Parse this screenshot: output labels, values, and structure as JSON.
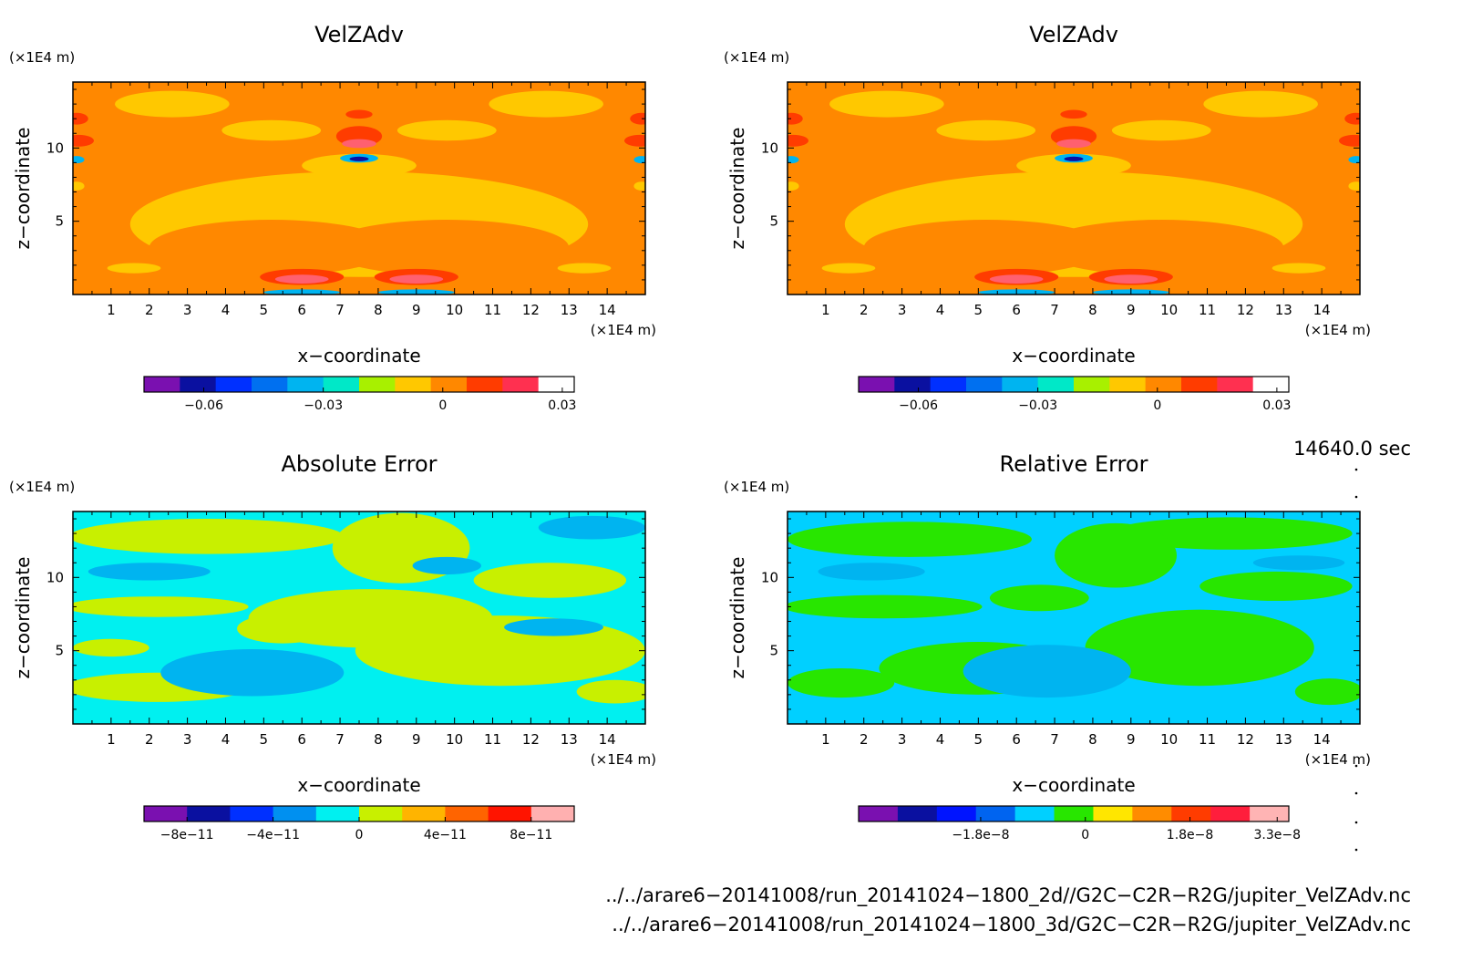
{
  "chart_data": [
    {
      "type": "heatmap",
      "title": "VelZAdv",
      "xlabel": "x−coordinate",
      "ylabel": "z−coordinate",
      "x_unit": "(×1E4 m)",
      "y_unit": "(×1E4 m)",
      "x_ticks": [
        "1",
        "2",
        "3",
        "4",
        "5",
        "6",
        "7",
        "8",
        "9",
        "10",
        "11",
        "12",
        "13",
        "14"
      ],
      "y_ticks": [
        "5",
        "10"
      ],
      "xlim": [
        0,
        15
      ],
      "ylim": [
        0,
        14.5
      ],
      "colorbar": {
        "colors": [
          "#7a10b0",
          "#0a10a0",
          "#0030ff",
          "#0070f0",
          "#00b4f0",
          "#00e8c8",
          "#a8f000",
          "#ffc800",
          "#ff8800",
          "#ff3c00",
          "#ff3050",
          "#ffffff"
        ],
        "tick_labels": [
          "−0.06",
          "−0.03",
          "0",
          "0.03"
        ],
        "tick_values": [
          -0.06,
          -0.03,
          0,
          0.03
        ],
        "range": [
          -0.075,
          0.033
        ]
      },
      "fields": {
        "background": "#ff8800",
        "regions": [
          {
            "value": "yellow",
            "cx": 2.6,
            "cy": 13.0,
            "rx": 1.5,
            "ry": 0.9
          },
          {
            "value": "yellow",
            "cx": 12.4,
            "cy": 13.0,
            "rx": 1.5,
            "ry": 0.9
          },
          {
            "value": "yellow",
            "cx": 5.2,
            "cy": 11.2,
            "rx": 1.3,
            "ry": 0.7
          },
          {
            "value": "yellow",
            "cx": 9.8,
            "cy": 11.2,
            "rx": 1.3,
            "ry": 0.7
          },
          {
            "value": "yellow",
            "cx": 7.5,
            "cy": 4.8,
            "rx": 6.0,
            "ry": 3.6
          },
          {
            "value": "yellow",
            "cx": 7.5,
            "cy": 8.8,
            "rx": 1.5,
            "ry": 0.8
          },
          {
            "value": "orange",
            "cx": 5.2,
            "cy": 3.2,
            "rx": 3.2,
            "ry": 1.9
          },
          {
            "value": "orange",
            "cx": 9.8,
            "cy": 3.2,
            "rx": 3.2,
            "ry": 1.9
          },
          {
            "value": "yellow",
            "cx": 1.6,
            "cy": 1.8,
            "rx": 0.7,
            "ry": 0.35
          },
          {
            "value": "yellow",
            "cx": 13.4,
            "cy": 1.8,
            "rx": 0.7,
            "ry": 0.35
          },
          {
            "value": "red",
            "cx": 7.5,
            "cy": 10.8,
            "rx": 0.6,
            "ry": 0.7
          },
          {
            "value": "red",
            "cx": 7.5,
            "cy": 12.3,
            "rx": 0.35,
            "ry": 0.3
          },
          {
            "value": "pink",
            "cx": 7.5,
            "cy": 10.3,
            "rx": 0.45,
            "ry": 0.3
          },
          {
            "value": "cyan",
            "cx": 7.5,
            "cy": 9.3,
            "rx": 0.5,
            "ry": 0.3
          },
          {
            "value": "blue",
            "cx": 7.5,
            "cy": 9.25,
            "rx": 0.25,
            "ry": 0.16
          },
          {
            "value": "red",
            "cx": 0.15,
            "cy": 10.5,
            "rx": 0.4,
            "ry": 0.4
          },
          {
            "value": "red",
            "cx": 14.85,
            "cy": 10.5,
            "rx": 0.4,
            "ry": 0.4
          },
          {
            "value": "red",
            "cx": 0.1,
            "cy": 12.0,
            "rx": 0.3,
            "ry": 0.4
          },
          {
            "value": "red",
            "cx": 14.9,
            "cy": 12.0,
            "rx": 0.3,
            "ry": 0.4
          },
          {
            "value": "cyan",
            "cx": 0.1,
            "cy": 9.2,
            "rx": 0.2,
            "ry": 0.25
          },
          {
            "value": "cyan",
            "cx": 14.9,
            "cy": 9.2,
            "rx": 0.2,
            "ry": 0.25
          },
          {
            "value": "yellow",
            "cx": 0.1,
            "cy": 7.4,
            "rx": 0.2,
            "ry": 0.3
          },
          {
            "value": "yellow",
            "cx": 14.9,
            "cy": 7.4,
            "rx": 0.2,
            "ry": 0.3
          },
          {
            "value": "red",
            "cx": 6.0,
            "cy": 1.2,
            "rx": 1.1,
            "ry": 0.55
          },
          {
            "value": "red",
            "cx": 9.0,
            "cy": 1.2,
            "rx": 1.1,
            "ry": 0.55
          },
          {
            "value": "pink",
            "cx": 6.0,
            "cy": 1.05,
            "rx": 0.7,
            "ry": 0.3
          },
          {
            "value": "pink",
            "cx": 9.0,
            "cy": 1.05,
            "rx": 0.7,
            "ry": 0.3
          },
          {
            "value": "cyan",
            "cx": 6.0,
            "cy": 0.15,
            "rx": 1.0,
            "ry": 0.2
          },
          {
            "value": "cyan",
            "cx": 9.0,
            "cy": 0.15,
            "rx": 1.0,
            "ry": 0.2
          }
        ]
      }
    },
    {
      "type": "heatmap",
      "title": "VelZAdv",
      "xlabel": "x−coordinate",
      "ylabel": "z−coordinate",
      "x_unit": "(×1E4 m)",
      "y_unit": "(×1E4 m)",
      "x_ticks": [
        "1",
        "2",
        "3",
        "4",
        "5",
        "6",
        "7",
        "8",
        "9",
        "10",
        "11",
        "12",
        "13",
        "14"
      ],
      "y_ticks": [
        "5",
        "10"
      ],
      "xlim": [
        0,
        15
      ],
      "ylim": [
        0,
        14.5
      ],
      "colorbar": {
        "colors": [
          "#7a10b0",
          "#0a10a0",
          "#0030ff",
          "#0070f0",
          "#00b4f0",
          "#00e8c8",
          "#a8f000",
          "#ffc800",
          "#ff8800",
          "#ff3c00",
          "#ff3050",
          "#ffffff"
        ],
        "tick_labels": [
          "−0.06",
          "−0.03",
          "0",
          "0.03"
        ],
        "tick_values": [
          -0.06,
          -0.03,
          0,
          0.03
        ],
        "range": [
          -0.075,
          0.033
        ]
      },
      "fields": {
        "background": "#ff8800",
        "regions": [
          {
            "value": "yellow",
            "cx": 2.6,
            "cy": 13.0,
            "rx": 1.5,
            "ry": 0.9
          },
          {
            "value": "yellow",
            "cx": 12.4,
            "cy": 13.0,
            "rx": 1.5,
            "ry": 0.9
          },
          {
            "value": "yellow",
            "cx": 5.2,
            "cy": 11.2,
            "rx": 1.3,
            "ry": 0.7
          },
          {
            "value": "yellow",
            "cx": 9.8,
            "cy": 11.2,
            "rx": 1.3,
            "ry": 0.7
          },
          {
            "value": "yellow",
            "cx": 7.5,
            "cy": 4.8,
            "rx": 6.0,
            "ry": 3.6
          },
          {
            "value": "yellow",
            "cx": 7.5,
            "cy": 8.8,
            "rx": 1.5,
            "ry": 0.8
          },
          {
            "value": "orange",
            "cx": 5.2,
            "cy": 3.2,
            "rx": 3.2,
            "ry": 1.9
          },
          {
            "value": "orange",
            "cx": 9.8,
            "cy": 3.2,
            "rx": 3.2,
            "ry": 1.9
          },
          {
            "value": "yellow",
            "cx": 1.6,
            "cy": 1.8,
            "rx": 0.7,
            "ry": 0.35
          },
          {
            "value": "yellow",
            "cx": 13.4,
            "cy": 1.8,
            "rx": 0.7,
            "ry": 0.35
          },
          {
            "value": "red",
            "cx": 7.5,
            "cy": 10.8,
            "rx": 0.6,
            "ry": 0.7
          },
          {
            "value": "red",
            "cx": 7.5,
            "cy": 12.3,
            "rx": 0.35,
            "ry": 0.3
          },
          {
            "value": "pink",
            "cx": 7.5,
            "cy": 10.3,
            "rx": 0.45,
            "ry": 0.3
          },
          {
            "value": "cyan",
            "cx": 7.5,
            "cy": 9.3,
            "rx": 0.5,
            "ry": 0.3
          },
          {
            "value": "blue",
            "cx": 7.5,
            "cy": 9.25,
            "rx": 0.25,
            "ry": 0.16
          },
          {
            "value": "red",
            "cx": 0.15,
            "cy": 10.5,
            "rx": 0.4,
            "ry": 0.4
          },
          {
            "value": "red",
            "cx": 14.85,
            "cy": 10.5,
            "rx": 0.4,
            "ry": 0.4
          },
          {
            "value": "red",
            "cx": 0.1,
            "cy": 12.0,
            "rx": 0.3,
            "ry": 0.4
          },
          {
            "value": "red",
            "cx": 14.9,
            "cy": 12.0,
            "rx": 0.3,
            "ry": 0.4
          },
          {
            "value": "cyan",
            "cx": 0.1,
            "cy": 9.2,
            "rx": 0.2,
            "ry": 0.25
          },
          {
            "value": "cyan",
            "cx": 14.9,
            "cy": 9.2,
            "rx": 0.2,
            "ry": 0.25
          },
          {
            "value": "yellow",
            "cx": 0.1,
            "cy": 7.4,
            "rx": 0.2,
            "ry": 0.3
          },
          {
            "value": "yellow",
            "cx": 14.9,
            "cy": 7.4,
            "rx": 0.2,
            "ry": 0.3
          },
          {
            "value": "red",
            "cx": 6.0,
            "cy": 1.2,
            "rx": 1.1,
            "ry": 0.55
          },
          {
            "value": "red",
            "cx": 9.0,
            "cy": 1.2,
            "rx": 1.1,
            "ry": 0.55
          },
          {
            "value": "pink",
            "cx": 6.0,
            "cy": 1.05,
            "rx": 0.7,
            "ry": 0.3
          },
          {
            "value": "pink",
            "cx": 9.0,
            "cy": 1.05,
            "rx": 0.7,
            "ry": 0.3
          },
          {
            "value": "cyan",
            "cx": 6.0,
            "cy": 0.15,
            "rx": 1.0,
            "ry": 0.2
          },
          {
            "value": "cyan",
            "cx": 9.0,
            "cy": 0.15,
            "rx": 1.0,
            "ry": 0.2
          }
        ]
      }
    },
    {
      "type": "heatmap",
      "title": "Absolute Error",
      "xlabel": "x−coordinate",
      "ylabel": "z−coordinate",
      "x_unit": "(×1E4 m)",
      "y_unit": "(×1E4 m)",
      "x_ticks": [
        "1",
        "2",
        "3",
        "4",
        "5",
        "6",
        "7",
        "8",
        "9",
        "10",
        "11",
        "12",
        "13",
        "14"
      ],
      "y_ticks": [
        "5",
        "10"
      ],
      "xlim": [
        0,
        15
      ],
      "ylim": [
        0,
        14.5
      ],
      "colorbar": {
        "colors": [
          "#7a10b0",
          "#0a10a0",
          "#0030ff",
          "#0090f0",
          "#00f0f0",
          "#c8f000",
          "#ffb400",
          "#ff6400",
          "#ff1400",
          "#ffb0b0"
        ],
        "tick_labels": [
          "−8e−11",
          "−4e−11",
          "0",
          "4e−11",
          "8e−11"
        ],
        "tick_values": [
          -8e-11,
          -4e-11,
          0,
          4e-11,
          8e-11
        ],
        "range": [
          -1e-10,
          1e-10
        ]
      },
      "fields": {
        "background": "#00f0f0",
        "regions": [
          {
            "value": "lime",
            "cx": 7.8,
            "cy": 7.2,
            "rx": 3.2,
            "ry": 2.0
          },
          {
            "value": "lime",
            "cx": 11.2,
            "cy": 5.0,
            "rx": 3.8,
            "ry": 2.4
          },
          {
            "value": "lime",
            "cx": 2.2,
            "cy": 8.0,
            "rx": 2.4,
            "ry": 0.7
          },
          {
            "value": "lime",
            "cx": 3.5,
            "cy": 12.8,
            "rx": 3.6,
            "ry": 1.2
          },
          {
            "value": "lime",
            "cx": 8.6,
            "cy": 12.0,
            "rx": 1.8,
            "ry": 2.4
          },
          {
            "value": "lime",
            "cx": 12.5,
            "cy": 9.8,
            "rx": 2.0,
            "ry": 1.2
          },
          {
            "value": "lime",
            "cx": 2.2,
            "cy": 2.5,
            "rx": 2.4,
            "ry": 1.0
          },
          {
            "value": "lime",
            "cx": 14.2,
            "cy": 2.2,
            "rx": 1.0,
            "ry": 0.8
          },
          {
            "value": "lime",
            "cx": 5.5,
            "cy": 6.5,
            "rx": 1.2,
            "ry": 1.0
          },
          {
            "value": "lime",
            "cx": 1.0,
            "cy": 5.2,
            "rx": 1.0,
            "ry": 0.6
          },
          {
            "value": "cyan",
            "cx": 4.7,
            "cy": 3.5,
            "rx": 2.4,
            "ry": 1.6
          },
          {
            "value": "cyan",
            "cx": 9.8,
            "cy": 10.8,
            "rx": 0.9,
            "ry": 0.6
          },
          {
            "value": "cyan",
            "cx": 13.6,
            "cy": 13.4,
            "rx": 1.4,
            "ry": 0.8
          },
          {
            "value": "cyan",
            "cx": 2.0,
            "cy": 10.4,
            "rx": 1.6,
            "ry": 0.6
          },
          {
            "value": "cyan",
            "cx": 12.6,
            "cy": 6.6,
            "rx": 1.3,
            "ry": 0.6
          }
        ]
      }
    },
    {
      "type": "heatmap",
      "title": "Relative Error",
      "xlabel": "x−coordinate",
      "ylabel": "z−coordinate",
      "x_unit": "(×1E4 m)",
      "y_unit": "(×1E4 m)",
      "x_ticks": [
        "1",
        "2",
        "3",
        "4",
        "5",
        "6",
        "7",
        "8",
        "9",
        "10",
        "11",
        "12",
        "13",
        "14"
      ],
      "y_ticks": [
        "5",
        "10"
      ],
      "xlim": [
        0,
        15
      ],
      "ylim": [
        0,
        14.5
      ],
      "colorbar": {
        "colors": [
          "#7a10b0",
          "#0a10a0",
          "#0014ff",
          "#0064f0",
          "#00d0ff",
          "#28e600",
          "#ffe600",
          "#ff8c00",
          "#ff3c00",
          "#ff1e3c",
          "#ffb4b4"
        ],
        "tick_labels": [
          "−1.8e−8",
          "0",
          "1.8e−8",
          "3.3e−8"
        ],
        "tick_values": [
          -1.8e-08,
          0,
          1.8e-08,
          3.3e-08
        ],
        "range": [
          -3.9e-08,
          3.5e-08
        ]
      },
      "fields": {
        "background": "#00d0ff",
        "regions": [
          {
            "value": "green",
            "cx": 10.8,
            "cy": 5.2,
            "rx": 3.0,
            "ry": 2.6
          },
          {
            "value": "green",
            "cx": 3.2,
            "cy": 12.6,
            "rx": 3.2,
            "ry": 1.2
          },
          {
            "value": "green",
            "cx": 11.6,
            "cy": 13.0,
            "rx": 3.2,
            "ry": 1.1
          },
          {
            "value": "green",
            "cx": 8.6,
            "cy": 11.5,
            "rx": 1.6,
            "ry": 2.2
          },
          {
            "value": "green",
            "cx": 2.5,
            "cy": 8.0,
            "rx": 2.6,
            "ry": 0.8
          },
          {
            "value": "green",
            "cx": 6.6,
            "cy": 8.6,
            "rx": 1.3,
            "ry": 0.9
          },
          {
            "value": "green",
            "cx": 12.8,
            "cy": 9.4,
            "rx": 2.0,
            "ry": 1.0
          },
          {
            "value": "green",
            "cx": 1.4,
            "cy": 2.8,
            "rx": 1.4,
            "ry": 1.0
          },
          {
            "value": "green",
            "cx": 14.2,
            "cy": 2.2,
            "rx": 0.9,
            "ry": 0.9
          },
          {
            "value": "green",
            "cx": 5.0,
            "cy": 3.8,
            "rx": 2.6,
            "ry": 1.8
          },
          {
            "value": "cyan",
            "cx": 6.8,
            "cy": 3.6,
            "rx": 2.2,
            "ry": 1.8
          },
          {
            "value": "cyan",
            "cx": 2.2,
            "cy": 10.4,
            "rx": 1.4,
            "ry": 0.6
          },
          {
            "value": "cyan",
            "cx": 13.4,
            "cy": 11.0,
            "rx": 1.2,
            "ry": 0.5
          }
        ]
      }
    }
  ],
  "time_label": "14640.0 sec",
  "files": [
    "../../arare6−20141008/run_20141024−1800_2d//G2C−C2R−R2G/jupiter_VelZAdv.nc",
    "../../arare6−20141008/run_20141024−1800_3d/G2C−C2R−R2G/jupiter_VelZAdv.nc"
  ],
  "colors": {
    "yellow": "#ffc800",
    "orange": "#ff8800",
    "red": "#ff3c00",
    "pink": "#ff6070",
    "cyan": "#00b4f0",
    "blue": "#0a10a0",
    "lime": "#c8f000",
    "green": "#28e600"
  }
}
